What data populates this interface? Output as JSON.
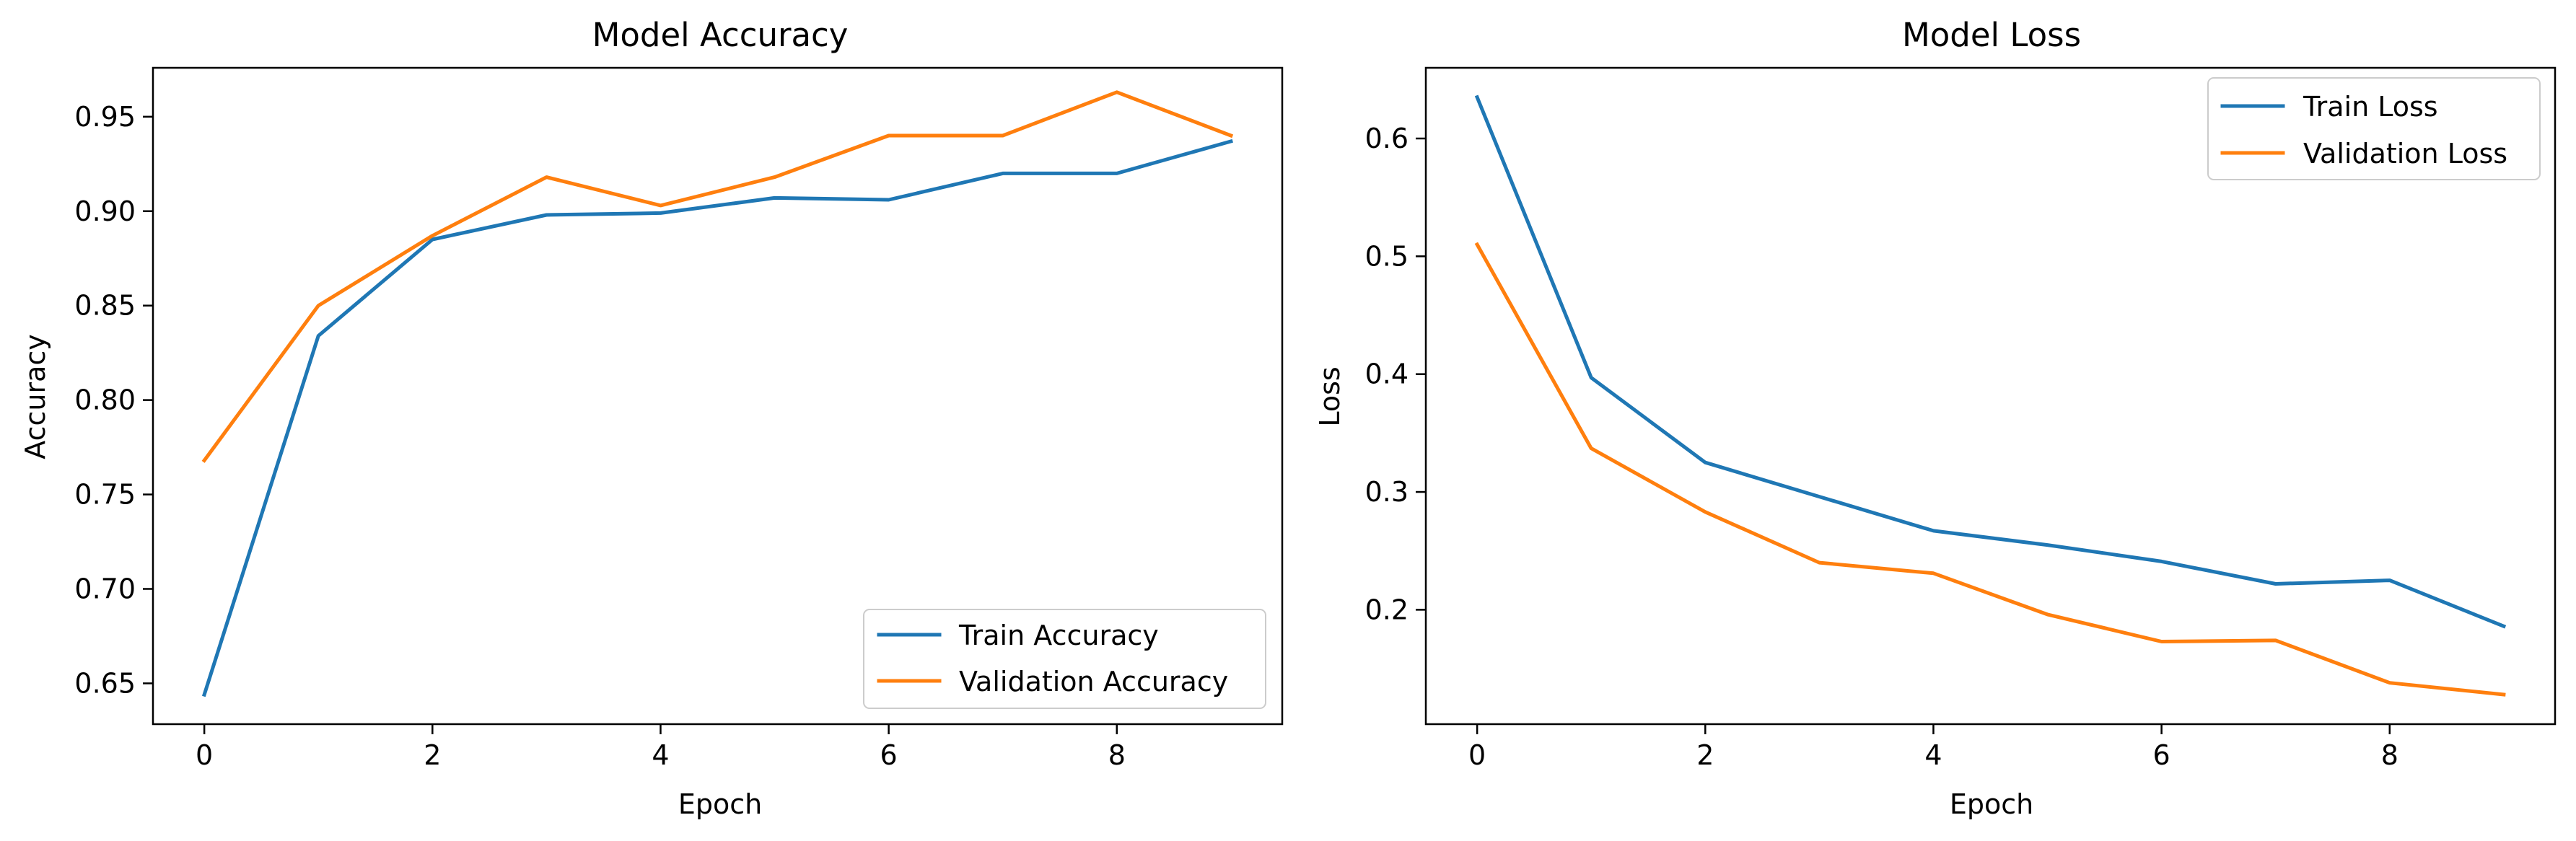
{
  "chart_data": [
    {
      "type": "line",
      "title": "Model Accuracy",
      "xlabel": "Epoch",
      "ylabel": "Accuracy",
      "x": [
        0,
        1,
        2,
        3,
        4,
        5,
        6,
        7,
        8,
        9
      ],
      "xlim": [
        -0.45,
        9.45
      ],
      "ylim": [
        0.6284,
        0.9759
      ],
      "xticks": [
        0,
        2,
        4,
        6,
        8
      ],
      "yticks": [
        0.65,
        0.7,
        0.75,
        0.8,
        0.85,
        0.9,
        0.95
      ],
      "legend_position": "lower-right",
      "grid": false,
      "series": [
        {
          "name": "Train Accuracy",
          "color": "#1f77b4",
          "values": [
            0.644,
            0.834,
            0.885,
            0.898,
            0.899,
            0.907,
            0.906,
            0.92,
            0.92,
            0.937
          ]
        },
        {
          "name": "Validation Accuracy",
          "color": "#ff7f0e",
          "values": [
            0.768,
            0.85,
            0.887,
            0.918,
            0.903,
            0.918,
            0.94,
            0.94,
            0.963,
            0.94
          ]
        }
      ]
    },
    {
      "type": "line",
      "title": "Model Loss",
      "xlabel": "Epoch",
      "ylabel": "Loss",
      "x": [
        0,
        1,
        2,
        3,
        4,
        5,
        6,
        7,
        8,
        9
      ],
      "xlim": [
        -0.45,
        9.45
      ],
      "ylim": [
        0.1029,
        0.66
      ],
      "xticks": [
        0,
        2,
        4,
        6,
        8
      ],
      "yticks": [
        0.2,
        0.3,
        0.4,
        0.5,
        0.6
      ],
      "legend_position": "upper-right",
      "grid": false,
      "series": [
        {
          "name": "Train Loss",
          "color": "#1f77b4",
          "values": [
            0.635,
            0.397,
            0.325,
            0.296,
            0.267,
            0.255,
            0.241,
            0.222,
            0.225,
            0.186
          ]
        },
        {
          "name": "Validation Loss",
          "color": "#ff7f0e",
          "values": [
            0.51,
            0.337,
            0.283,
            0.24,
            0.231,
            0.196,
            0.173,
            0.174,
            0.138,
            0.128
          ]
        }
      ]
    }
  ]
}
